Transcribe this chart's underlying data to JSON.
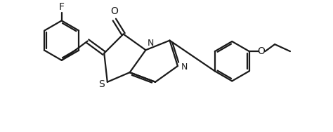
{
  "bg_color": "#ffffff",
  "line_color": "#1a1a1a",
  "line_width": 1.6,
  "font_size": 10,
  "figsize": [
    4.74,
    1.88
  ],
  "dpi": 100,
  "xlim": [
    0,
    10
  ],
  "ylim": [
    0,
    4
  ]
}
